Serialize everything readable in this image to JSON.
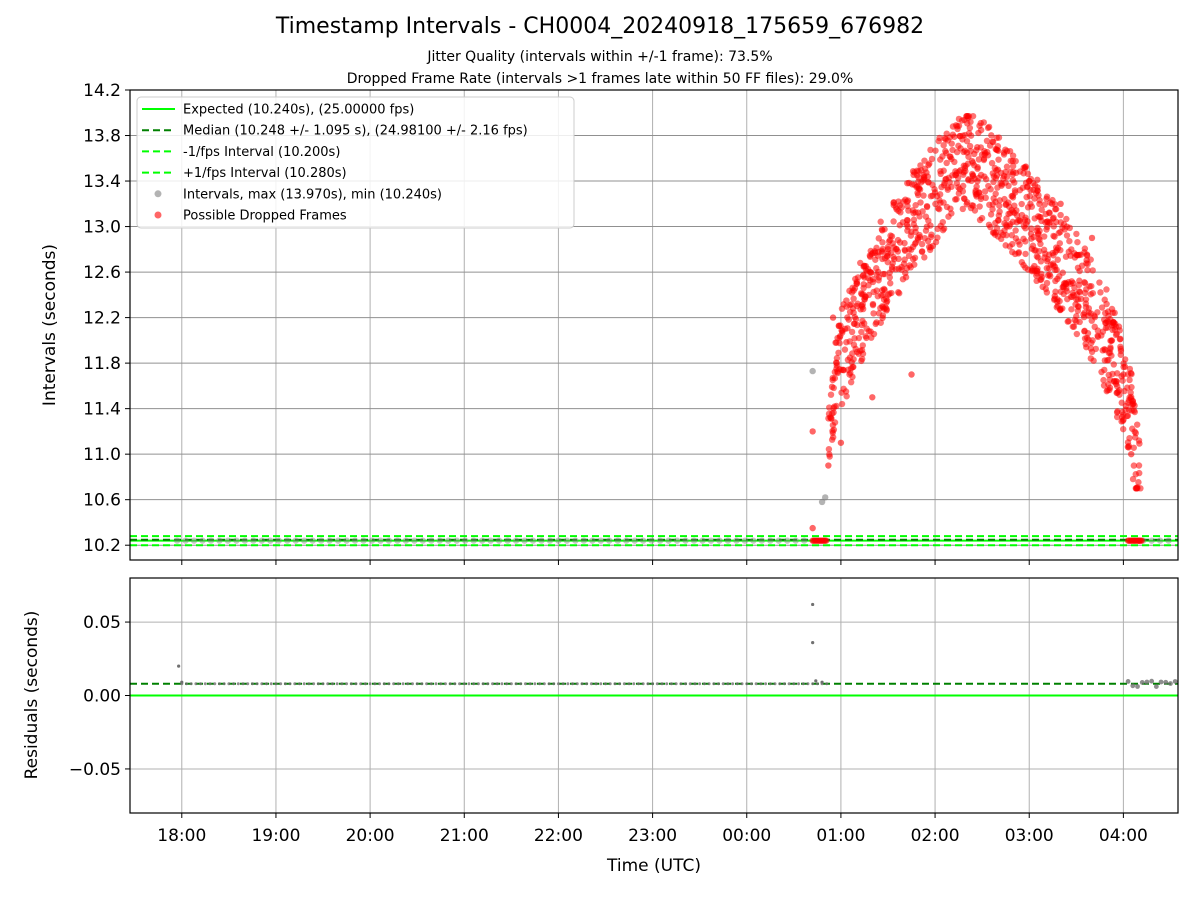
{
  "chart_data": [
    {
      "type": "scatter",
      "title": "Timestamp Intervals - CH0004_20240918_175659_676982",
      "subtitle_lines": [
        "Jitter Quality (intervals within +/-1 frame): 73.5%",
        "Dropped Frame Rate (intervals >1 frames late within 50 FF files): 29.0%"
      ],
      "ylabel": "Intervals (seconds)",
      "ylim": [
        10.07,
        14.2
      ],
      "yticks": [
        "10.2",
        "10.6",
        "11.0",
        "11.4",
        "11.8",
        "12.2",
        "12.6",
        "13.0",
        "13.4",
        "13.8",
        "14.2"
      ],
      "grid": true,
      "legend_position": "upper-left",
      "reference_lines": [
        {
          "name": "Expected (10.240s), (25.00000 fps)",
          "y": 10.24,
          "color": "#00ff00",
          "style": "solid"
        },
        {
          "name": "Median (10.248 +/- 1.095 s), (24.98100 +/- 2.16 fps)",
          "y": 10.248,
          "color": "#008000",
          "style": "dashed"
        },
        {
          "name": "-1/fps Interval (10.200s)",
          "y": 10.2,
          "color": "#00ff00",
          "style": "dashed"
        },
        {
          "name": "+1/fps Interval (10.280s)",
          "y": 10.28,
          "color": "#00ff00",
          "style": "dashed"
        }
      ],
      "series": [
        {
          "name": "Intervals, max (13.970s), min (10.240s)",
          "color": "#808080",
          "points": [
            {
              "x": "00:42",
              "y": 11.73
            },
            {
              "x": "00:48",
              "y": 10.58
            },
            {
              "x": "00:50",
              "y": 10.62
            }
          ],
          "baseline": {
            "x_start": "17:57",
            "x_end": "04:34",
            "y": 10.24
          }
        },
        {
          "name": "Possible Dropped Frames",
          "color": "#ff0000",
          "description_values": {
            "x_start": "00:40",
            "x_end": "04:14",
            "y_min": 10.24,
            "y_max": 13.97,
            "peak_time": "02:20"
          },
          "sample_points": [
            {
              "x": "00:42",
              "y": 11.2
            },
            {
              "x": "00:42",
              "y": 10.35
            },
            {
              "x": "00:52",
              "y": 10.9
            },
            {
              "x": "00:55",
              "y": 12.2
            },
            {
              "x": "01:00",
              "y": 11.1
            },
            {
              "x": "01:10",
              "y": 12.5
            },
            {
              "x": "01:20",
              "y": 11.5
            },
            {
              "x": "01:30",
              "y": 12.8
            },
            {
              "x": "01:45",
              "y": 11.7
            },
            {
              "x": "02:00",
              "y": 13.3
            },
            {
              "x": "02:20",
              "y": 13.97
            },
            {
              "x": "02:40",
              "y": 13.5
            },
            {
              "x": "03:00",
              "y": 13.4
            },
            {
              "x": "03:20",
              "y": 13.2
            },
            {
              "x": "03:40",
              "y": 12.9
            },
            {
              "x": "04:00",
              "y": 11.7
            },
            {
              "x": "04:05",
              "y": 11.0
            },
            {
              "x": "04:10",
              "y": 10.24
            }
          ]
        }
      ]
    },
    {
      "type": "scatter",
      "ylabel": "Residuals (seconds)",
      "xlabel": "Time (UTC)",
      "ylim": [
        -0.08,
        0.08
      ],
      "yticks": [
        "−0.05",
        "0.00",
        "0.05"
      ],
      "xticks": [
        "18:00",
        "19:00",
        "20:00",
        "21:00",
        "22:00",
        "23:00",
        "00:00",
        "01:00",
        "02:00",
        "03:00",
        "04:00"
      ],
      "grid": true,
      "reference_lines": [
        {
          "name": "Expected",
          "y": 0.0,
          "color": "#00ff00",
          "style": "solid"
        },
        {
          "name": "Median",
          "y": 0.008,
          "color": "#008000",
          "style": "dashed"
        }
      ],
      "series": [
        {
          "name": "Residuals",
          "color": "#808080",
          "points": [
            {
              "x": "17:58",
              "y": 0.02
            },
            {
              "x": "18:00",
              "y": 0.009
            },
            {
              "x": "00:42",
              "y": 0.062
            },
            {
              "x": "00:42",
              "y": 0.036
            },
            {
              "x": "00:44",
              "y": 0.01
            },
            {
              "x": "00:48",
              "y": 0.009
            }
          ],
          "baseline": {
            "x_start": "18:00",
            "x_end": "04:34",
            "y": 0.008
          }
        }
      ]
    }
  ]
}
